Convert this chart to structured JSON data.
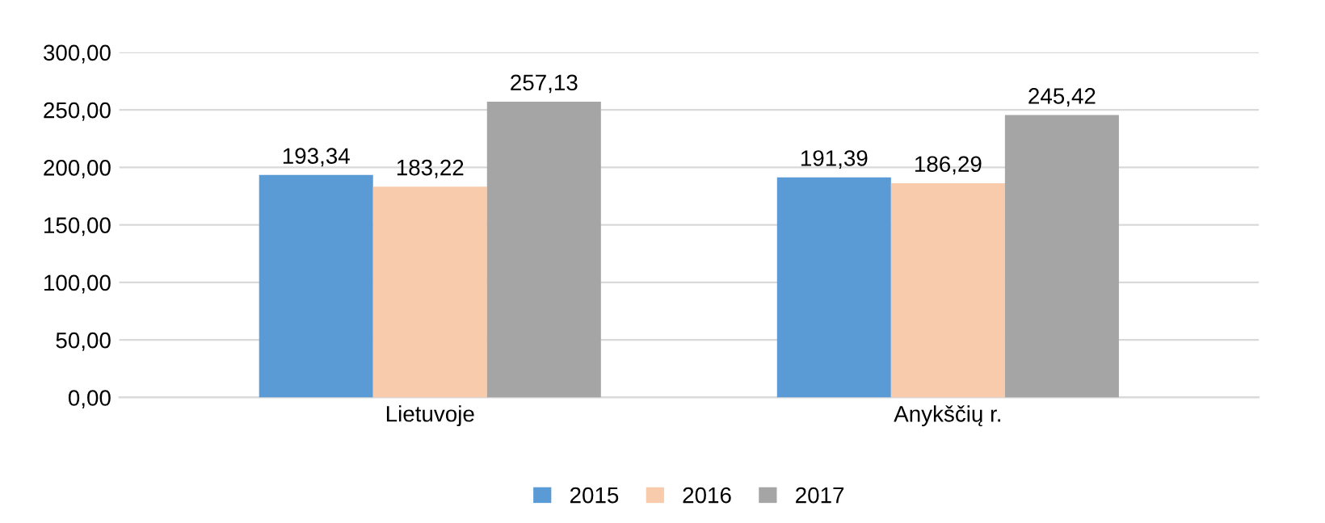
{
  "chart_data": {
    "type": "bar",
    "categories": [
      "Lietuvoje",
      "Anykščių r."
    ],
    "series": [
      {
        "name": "2015",
        "color": "#5b9bd5",
        "values": [
          193.34,
          191.39
        ],
        "value_labels": [
          "193,34",
          "191,39"
        ]
      },
      {
        "name": "2016",
        "color": "#f8cbad",
        "values": [
          183.22,
          186.29
        ],
        "value_labels": [
          "183,22",
          "186,29"
        ]
      },
      {
        "name": "2017",
        "color": "#a5a5a5",
        "values": [
          257.13,
          245.42
        ],
        "value_labels": [
          "257,13",
          "245,42"
        ]
      }
    ],
    "ylim": [
      0,
      300
    ],
    "yticks": [
      {
        "value": 0,
        "label": "0,00"
      },
      {
        "value": 50,
        "label": "50,00"
      },
      {
        "value": 100,
        "label": "100,00"
      },
      {
        "value": 150,
        "label": "150,00"
      },
      {
        "value": 200,
        "label": "200,00"
      },
      {
        "value": 250,
        "label": "250,00"
      },
      {
        "value": 300,
        "label": "300,00"
      }
    ],
    "grid": "y",
    "legend": "bottom"
  }
}
